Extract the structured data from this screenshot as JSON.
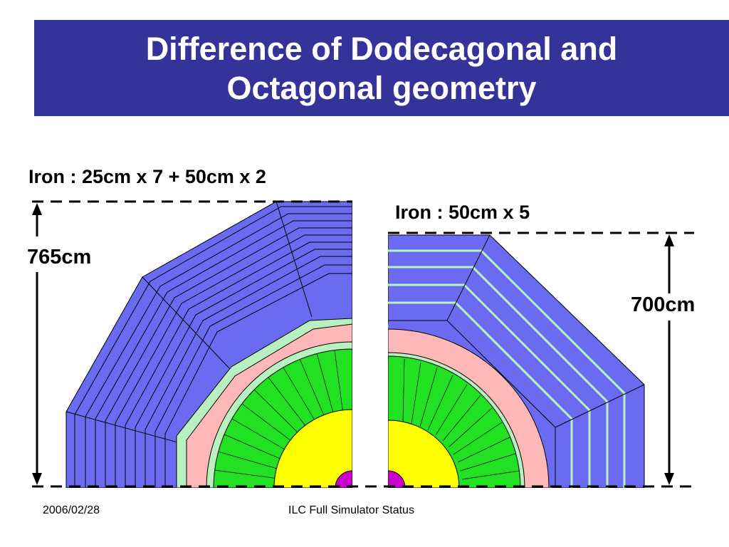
{
  "slide": {
    "title": "Difference of Dodecagonal and Octagonal geometry",
    "left_label": "Iron : 25cm x 7 + 50cm x 2",
    "right_label": "Iron : 50cm x 5",
    "left_height": "765cm",
    "right_height": "700cm",
    "footer_date": "2006/02/28",
    "footer_center": "ILC Full Simulator Status"
  },
  "colors": {
    "title_bg": "#333399",
    "iron": "#6b6bf2",
    "gap": "#b8f0c0",
    "coil": "#ffb8b8",
    "hcal": "#22e022",
    "core": "#ffff00",
    "tracker": "#cc00cc"
  }
}
